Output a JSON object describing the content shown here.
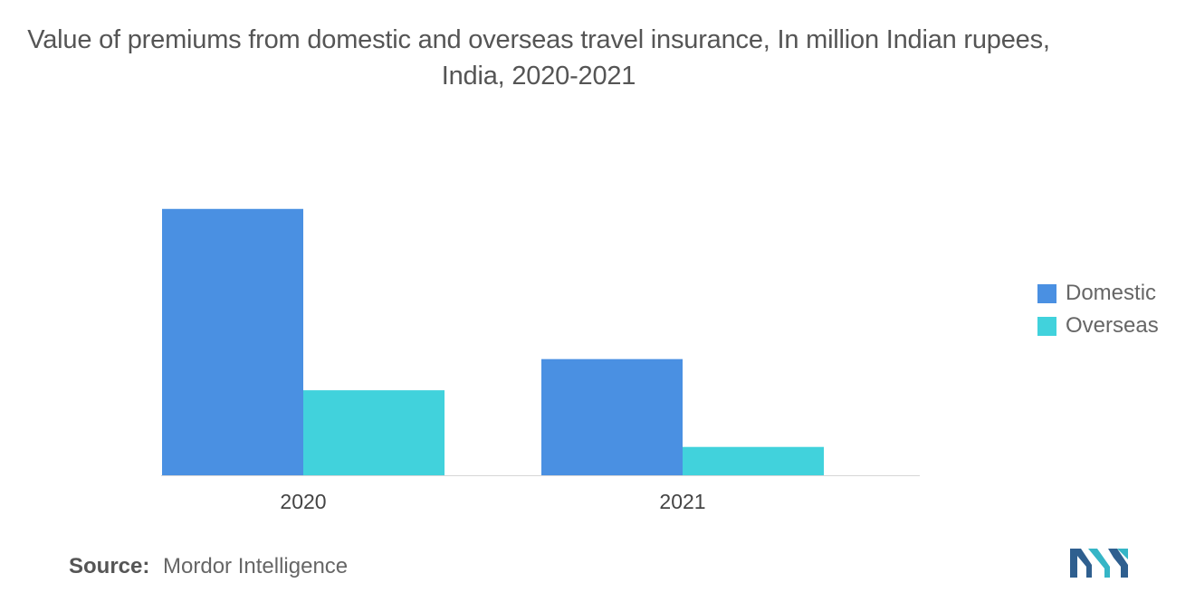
{
  "title": "Value of premiums from domestic and overseas travel insurance, In million Indian rupees, India, 2020-2021",
  "source": {
    "label": "Source:",
    "value": "Mordor Intelligence"
  },
  "logo": {
    "icon": "mordor-intelligence-logo-icon"
  },
  "colors": {
    "domestic": "#4A90E2",
    "overseas": "#41D2DC",
    "axis": "#d6d6d6",
    "tick_text": "#444444"
  },
  "chart_data": {
    "type": "bar",
    "categories": [
      "2020",
      "2021"
    ],
    "series": [
      {
        "name": "Domestic",
        "values": [
          9.4,
          4.1
        ]
      },
      {
        "name": "Overseas",
        "values": [
          3.0,
          1.0
        ]
      }
    ],
    "ylim": [
      0,
      10
    ],
    "xlabel": "",
    "ylabel": "",
    "grid": false,
    "legend": "right"
  }
}
